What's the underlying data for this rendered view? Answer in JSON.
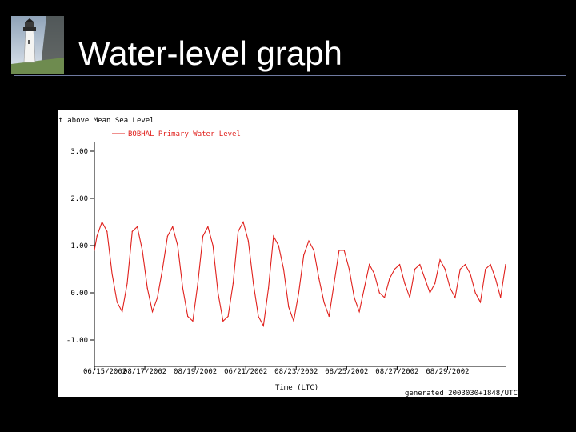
{
  "slide": {
    "title": "Water-level graph",
    "logo_icon": "lighthouse-icon"
  },
  "colors": {
    "background": "#000000",
    "title_text": "#ffffff",
    "rule": "#6f7aa0",
    "panel": "#ffffff",
    "series": "#e0201c",
    "axis_text": "#000000"
  },
  "chart_data": {
    "type": "line",
    "title": "",
    "ylabel": "ft above Mean Sea Level",
    "xlabel": "Time (LTC)",
    "footer": "generated 2003030+1848/UTC",
    "ylim": [
      -1.5,
      3.2
    ],
    "xlim": [
      0,
      16.3
    ],
    "yticks": [
      3.0,
      2.0,
      1.0,
      0.0,
      -1.0
    ],
    "ytick_labels": [
      "3.00",
      "2.00",
      "1.00",
      "0.00",
      "-1.00"
    ],
    "xticks": [
      0,
      2,
      4,
      6,
      8,
      10,
      12,
      14
    ],
    "xtick_labels": [
      "06/15/2002",
      "08/17/2002",
      "08/19/2002",
      "06/21/2002",
      "08/23/2002",
      "08/25/2002",
      "08/27/2002",
      "08/29/2002"
    ],
    "legend": {
      "label": "BOBHAL Primary Water Level",
      "position": "top-left"
    },
    "grid": false,
    "series": [
      {
        "name": "BOBHAL Primary Water Level",
        "x": [
          0.0,
          0.1,
          0.3,
          0.5,
          0.7,
          0.9,
          1.1,
          1.3,
          1.5,
          1.7,
          1.9,
          2.1,
          2.3,
          2.5,
          2.7,
          2.9,
          3.1,
          3.3,
          3.5,
          3.7,
          3.9,
          4.1,
          4.3,
          4.5,
          4.7,
          4.9,
          5.1,
          5.3,
          5.5,
          5.7,
          5.9,
          6.1,
          6.3,
          6.5,
          6.7,
          6.9,
          7.1,
          7.3,
          7.5,
          7.7,
          7.9,
          8.1,
          8.3,
          8.5,
          8.7,
          8.9,
          9.1,
          9.3,
          9.5,
          9.7,
          9.9,
          10.1,
          10.3,
          10.5,
          10.7,
          10.9,
          11.1,
          11.3,
          11.5,
          11.7,
          11.9,
          12.1,
          12.3,
          12.5,
          12.7,
          12.9,
          13.1,
          13.3,
          13.5,
          13.7,
          13.9,
          14.1,
          14.3,
          14.5,
          14.7,
          14.9,
          15.1,
          15.3,
          15.5,
          15.7,
          15.9,
          16.1,
          16.3
        ],
        "y": [
          0.9,
          1.2,
          1.5,
          1.3,
          0.4,
          -0.2,
          -0.4,
          0.2,
          1.3,
          1.4,
          0.9,
          0.1,
          -0.4,
          -0.1,
          0.5,
          1.2,
          1.4,
          1.0,
          0.1,
          -0.5,
          -0.6,
          0.2,
          1.2,
          1.4,
          1.0,
          0.0,
          -0.6,
          -0.5,
          0.2,
          1.3,
          1.5,
          1.1,
          0.2,
          -0.5,
          -0.7,
          0.1,
          1.2,
          1.0,
          0.5,
          -0.3,
          -0.6,
          0.0,
          0.8,
          1.1,
          0.9,
          0.3,
          -0.2,
          -0.5,
          0.2,
          0.9,
          0.9,
          0.5,
          -0.1,
          -0.4,
          0.1,
          0.6,
          0.4,
          0.0,
          -0.1,
          0.3,
          0.5,
          0.6,
          0.2,
          -0.1,
          0.5,
          0.6,
          0.3,
          0.0,
          0.2,
          0.7,
          0.5,
          0.1,
          -0.1,
          0.5,
          0.6,
          0.4,
          0.0,
          -0.2,
          0.5,
          0.6,
          0.3,
          -0.1,
          0.6
        ]
      }
    ]
  }
}
